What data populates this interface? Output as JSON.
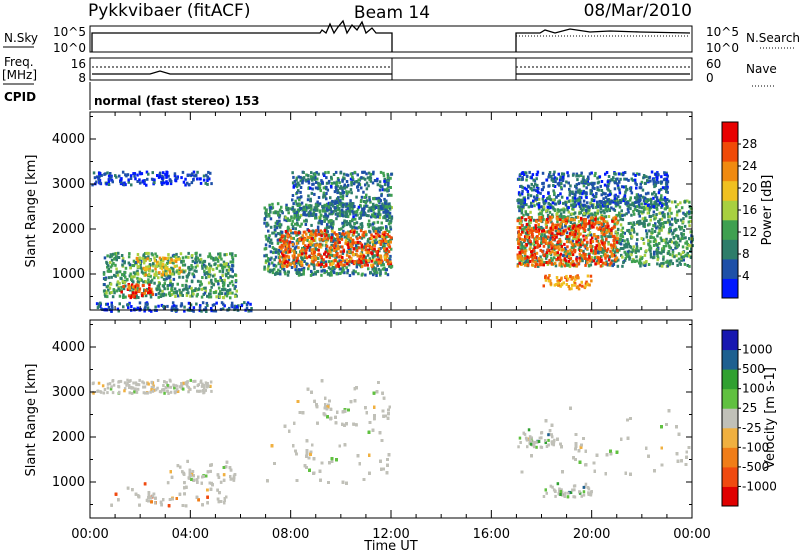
{
  "header": {
    "station": "Pykkvibaer (fitACF)",
    "beam": "Beam 14",
    "date": "08/Mar/2010"
  },
  "strip": {
    "nsky_label": "N.Sky",
    "nsearch_label": "N.Search",
    "noise_ticks": [
      "10^5",
      "10^0"
    ],
    "freq_label": "Freq.",
    "freq_unit": "[MHz]",
    "freq_ticks": [
      "16",
      "8"
    ],
    "nave_label": "Nave",
    "nave_ticks": [
      "60",
      "0"
    ],
    "cpid_label": "CPID",
    "cpid_value": "normal (fast stereo) 153"
  },
  "colors": {
    "power": [
      "#0018ff",
      "#1e50a8",
      "#2e7d6a",
      "#3fa050",
      "#a8d040",
      "#f0c020",
      "#f08a10",
      "#f04a08",
      "#e80000"
    ],
    "velocity": [
      "#e00000",
      "#f04a10",
      "#f07d18",
      "#f0b040",
      "#c0c0b8",
      "#60c040",
      "#30a030",
      "#1e6090",
      "#1818b0"
    ],
    "ground_scatter": "#c0c0b8"
  },
  "chart_data": [
    {
      "type": "heatmap",
      "title": "Power",
      "ylabel": "Slant Range [km]",
      "xlabel": "Time UT",
      "x_ticks": [
        "00:00",
        "04:00",
        "08:00",
        "12:00",
        "16:00",
        "20:00",
        "00:00"
      ],
      "x_range_hours": [
        0,
        24
      ],
      "data_gap_hours": [
        12,
        17
      ],
      "y_ticks": [
        1000,
        2000,
        3000,
        4000
      ],
      "ylim": [
        200,
        4600
      ],
      "colorbar": {
        "label": "Power [dB]",
        "ticks": [
          4,
          8,
          12,
          16,
          20,
          24,
          28
        ],
        "range": [
          0,
          32
        ]
      },
      "regions": [
        {
          "t0": 0.0,
          "t1": 4.8,
          "r0": 3000,
          "r1": 3300,
          "level": 0.1
        },
        {
          "t0": 0.0,
          "t1": 6.5,
          "r0": 200,
          "r1": 400,
          "level": 0.15
        },
        {
          "t0": 0.5,
          "t1": 5.8,
          "r0": 500,
          "r1": 1500,
          "level": 0.35
        },
        {
          "t0": 1.8,
          "t1": 3.6,
          "r0": 1000,
          "r1": 1400,
          "level": 0.6
        },
        {
          "t0": 1.2,
          "t1": 2.5,
          "r0": 500,
          "r1": 800,
          "level": 0.85
        },
        {
          "t0": 6.9,
          "t1": 12.0,
          "r0": 1000,
          "r1": 2600,
          "level": 0.3
        },
        {
          "t0": 7.5,
          "t1": 12.0,
          "r0": 1200,
          "r1": 2000,
          "level": 0.8
        },
        {
          "t0": 8.0,
          "t1": 12.0,
          "r0": 2300,
          "r1": 3300,
          "level": 0.25
        },
        {
          "t0": 17.0,
          "t1": 24.0,
          "r0": 1200,
          "r1": 2700,
          "level": 0.35
        },
        {
          "t0": 17.0,
          "t1": 21.0,
          "r0": 1200,
          "r1": 2300,
          "level": 0.82
        },
        {
          "t0": 18.0,
          "t1": 20.0,
          "r0": 700,
          "r1": 1000,
          "level": 0.7
        },
        {
          "t0": 17.0,
          "t1": 23.0,
          "r0": 2500,
          "r1": 3300,
          "level": 0.2
        }
      ]
    },
    {
      "type": "heatmap",
      "title": "Velocity",
      "ylabel": "Slant Range [km]",
      "xlabel": "Time UT",
      "x_ticks": [
        "00:00",
        "04:00",
        "08:00",
        "12:00",
        "16:00",
        "20:00",
        "00:00"
      ],
      "x_range_hours": [
        0,
        24
      ],
      "data_gap_hours": [
        12,
        17
      ],
      "y_ticks": [
        1000,
        2000,
        3000,
        4000
      ],
      "ylim": [
        200,
        4600
      ],
      "colorbar": {
        "label": "Velocity [m s-1]",
        "ticks": [
          1000,
          500,
          100,
          25,
          -25,
          -100,
          -500,
          -1000
        ]
      },
      "regions": [
        {
          "t0": 0.0,
          "t1": 4.8,
          "r0": 3000,
          "r1": 3300,
          "level": 0.5
        },
        {
          "t0": 0.7,
          "t1": 5.5,
          "r0": 500,
          "r1": 1000,
          "level": 0.25
        },
        {
          "t0": 3.0,
          "t1": 5.8,
          "r0": 1000,
          "r1": 1500,
          "level": 0.5
        },
        {
          "t0": 6.9,
          "t1": 12.0,
          "r0": 1000,
          "r1": 2600,
          "level": 0.5
        },
        {
          "t0": 8.0,
          "t1": 12.0,
          "r0": 2300,
          "r1": 3300,
          "level": 0.5
        },
        {
          "t0": 17.0,
          "t1": 24.0,
          "r0": 1200,
          "r1": 2700,
          "level": 0.5
        },
        {
          "t0": 18.0,
          "t1": 20.0,
          "r0": 700,
          "r1": 1000,
          "level": 0.7
        },
        {
          "t0": 17.0,
          "t1": 18.5,
          "r0": 1800,
          "r1": 2200,
          "level": 0.7
        }
      ]
    }
  ]
}
